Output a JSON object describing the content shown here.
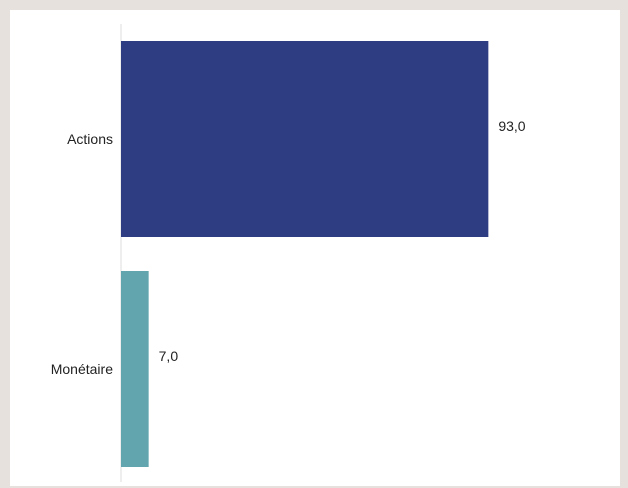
{
  "chart_data": {
    "type": "bar",
    "orientation": "horizontal",
    "categories": [
      "Actions",
      "Monétaire"
    ],
    "values": [
      93.0,
      7.0
    ],
    "value_labels": [
      "93,0",
      "7,0"
    ],
    "colors": [
      "#2e3d82",
      "#62a5ae"
    ],
    "xlim": [
      0,
      100
    ],
    "grid": false,
    "title": "",
    "xlabel": "",
    "ylabel": ""
  }
}
